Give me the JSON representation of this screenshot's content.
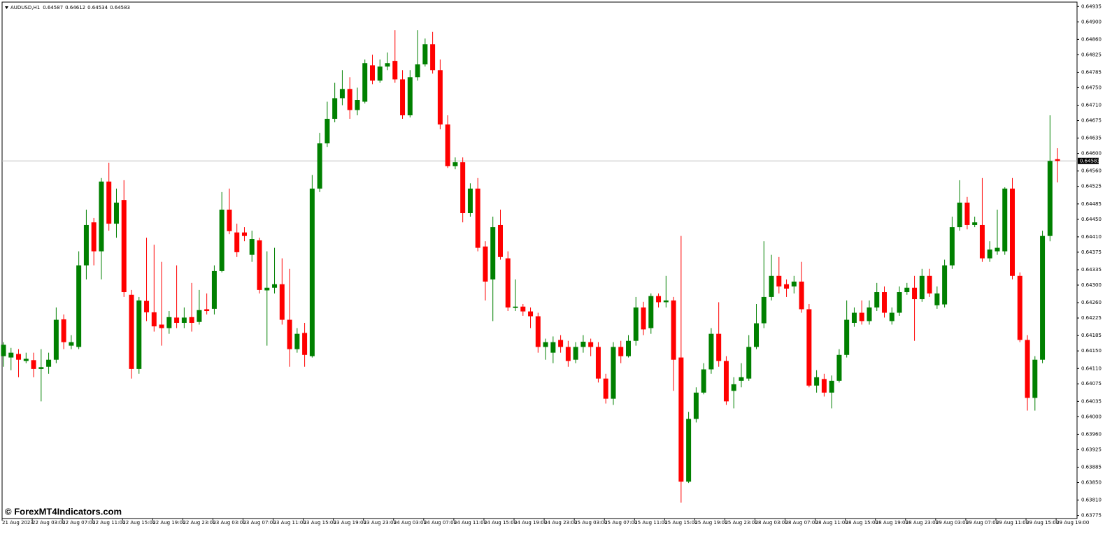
{
  "chart_data": {
    "type": "candlestick",
    "header": {
      "symbol": "AUDUSD,H1",
      "ohlc": [
        0.64587,
        0.64612,
        0.64534,
        0.64583
      ]
    },
    "watermark": "© ForexMT4Indicators.com",
    "current_price": 0.64583,
    "up_color": "#008000",
    "down_color": "#ff0000",
    "ylim": [
      0.63768,
      0.64945
    ],
    "yticks": [
      0.64935,
      {
        "value": 0.649,
        "label": "0.64900"
      },
      {
        "value": 0.6486,
        "label": "0.64860"
      },
      0.64825,
      0.64785,
      {
        "value": 0.6475,
        "label": "0.64750"
      },
      {
        "value": 0.6471,
        "label": "0.64710"
      },
      0.64675,
      0.64635,
      {
        "value": 0.646,
        "label": "0.64600"
      },
      {
        "value": 0.6456,
        "label": "0.64560"
      },
      0.64525,
      0.64485,
      {
        "value": 0.6445,
        "label": "0.64450"
      },
      {
        "value": 0.6441,
        "label": "0.64410"
      },
      0.64375,
      0.64335,
      {
        "value": 0.643,
        "label": "0.64300"
      },
      {
        "value": 0.6426,
        "label": "0.64260"
      },
      0.64225,
      0.64185,
      {
        "value": 0.6415,
        "label": "0.64150"
      },
      {
        "value": 0.6411,
        "label": "0.64110"
      },
      0.64075,
      0.64035,
      {
        "value": 0.64,
        "label": "0.64000"
      },
      {
        "value": 0.6396,
        "label": "0.63960"
      },
      0.63925,
      0.63885,
      {
        "value": 0.6385,
        "label": "0.63850"
      },
      {
        "value": 0.6381,
        "label": "0.63810"
      },
      0.63775
    ],
    "x_tick_labels": [
      "21 Aug 2023",
      "22 Aug 03:00",
      "22 Aug 07:00",
      "22 Aug 11:00",
      "22 Aug 15:00",
      "22 Aug 19:00",
      "22 Aug 23:00",
      "23 Aug 03:00",
      "23 Aug 07:00",
      "23 Aug 11:00",
      "23 Aug 15:00",
      "23 Aug 19:00",
      "23 Aug 23:00",
      "24 Aug 03:00",
      "24 Aug 07:00",
      "24 Aug 11:00",
      "24 Aug 15:00",
      "24 Aug 19:00",
      "24 Aug 23:00",
      "25 Aug 03:00",
      "25 Aug 07:00",
      "25 Aug 11:00",
      "25 Aug 15:00",
      "25 Aug 19:00",
      "25 Aug 23:00",
      "28 Aug 03:00",
      "28 Aug 07:00",
      "28 Aug 11:00",
      "28 Aug 15:00",
      "28 Aug 19:00",
      "28 Aug 23:00",
      "29 Aug 03:00",
      "29 Aug 07:00",
      "29 Aug 11:00",
      "29 Aug 15:00",
      "29 Aug 19:00"
    ],
    "open": [
      0.64138,
      0.64135,
      0.64143,
      0.64127,
      0.64129,
      0.64109,
      0.64114,
      0.6413,
      0.64222,
      0.64162,
      0.64159,
      0.64345,
      0.64443,
      0.64377,
      0.64536,
      0.6444,
      0.64494,
      0.64278,
      0.64109,
      0.64264,
      0.64238,
      0.6421,
      0.64202,
      0.64226,
      0.64214,
      0.64227,
      0.64216,
      0.64245,
      0.64246,
      0.64332,
      0.64472,
      0.6442,
      0.6442,
      0.64369,
      0.64402,
      0.64288,
      0.64294,
      0.64302,
      0.64221,
      0.64154,
      0.64191,
      0.64138,
      0.6452,
      0.64623,
      0.64679,
      0.64726,
      0.64747,
      0.64699,
      0.64718,
      0.64801,
      0.64766,
      0.64798,
      0.64811,
      0.64769,
      0.64687,
      0.64774,
      0.64803,
      0.64849,
      0.6479,
      0.64666,
      0.64571,
      0.6458,
      0.64464,
      0.6452,
      0.64388,
      0.64313,
      0.64437,
      0.64361,
      0.64248,
      0.64251,
      0.6424,
      0.64229,
      0.64159,
      0.64146,
      0.64175,
      0.64159,
      0.6413,
      0.64159,
      0.6417,
      0.64159,
      0.64087,
      0.64041,
      0.64159,
      0.64138,
      0.64173,
      0.64249,
      0.64202,
      0.64275,
      0.64261,
      0.64265,
      0.64135,
      0.63852,
      0.63995,
      0.64055,
      0.64108,
      0.64189,
      0.64127,
      0.64059,
      0.64082,
      0.64087,
      0.64159,
      0.64213,
      0.64273,
      0.64321,
      0.64302,
      0.64297,
      0.64308,
      0.64245,
      0.64071,
      0.64086,
      0.64055,
      0.64082,
      0.64141,
      0.64214,
      0.64237,
      0.64218,
      0.64249,
      0.64284,
      0.64218,
      0.64237,
      0.64284,
      0.64294,
      0.64268,
      0.64321,
      0.64254,
      0.64256,
      0.64345,
      0.64432,
      0.64488,
      0.64437,
      0.64437,
      0.64361,
      0.64377,
      0.64377,
      0.6452,
      0.64321,
      0.64175,
      0.64043,
      0.6413,
      0.64412,
      0.64587
    ],
    "high": [
      0.6417,
      0.64157,
      0.64154,
      0.64146,
      0.64146,
      0.64154,
      0.64146,
      0.64249,
      0.64233,
      0.64186,
      0.64377,
      0.64472,
      0.64453,
      0.64544,
      0.64579,
      0.6452,
      0.64539,
      0.64289,
      0.64273,
      0.64408,
      0.64392,
      0.64353,
      0.64241,
      0.64345,
      0.64249,
      0.64305,
      0.64289,
      0.64281,
      0.64345,
      0.64512,
      0.6452,
      0.6444,
      0.64432,
      0.64424,
      0.64408,
      0.64377,
      0.64385,
      0.64361,
      0.64337,
      0.64202,
      0.64214,
      0.64551,
      0.64647,
      0.64718,
      0.64761,
      0.6479,
      0.64774,
      0.6475,
      0.64814,
      0.64825,
      0.64814,
      0.6483,
      0.64881,
      0.6479,
      0.6479,
      0.64881,
      0.64862,
      0.64877,
      0.64814,
      0.64687,
      0.64591,
      0.64591,
      0.64532,
      0.64544,
      0.644,
      0.64456,
      0.64472,
      0.64377,
      0.64313,
      0.64257,
      0.64249,
      0.64237,
      0.64178,
      0.64183,
      0.64186,
      0.64173,
      0.6417,
      0.64186,
      0.64178,
      0.6417,
      0.64098,
      0.6417,
      0.64173,
      0.64186,
      0.64273,
      0.64262,
      0.64281,
      0.64281,
      0.64321,
      0.64273,
      0.64412,
      0.64011,
      0.64067,
      0.64122,
      0.64202,
      0.64261,
      0.64138,
      0.6409,
      0.64122,
      0.64186,
      0.64257,
      0.644,
      0.64369,
      0.64364,
      0.64313,
      0.64321,
      0.64353,
      0.64257,
      0.64106,
      0.64098,
      0.64094,
      0.64154,
      0.64265,
      0.64249,
      0.64265,
      0.64265,
      0.64305,
      0.64297,
      0.64249,
      0.64297,
      0.64305,
      0.64321,
      0.64337,
      0.64337,
      0.64297,
      0.64358,
      0.64456,
      0.64539,
      0.64501,
      0.64456,
      0.64544,
      0.644,
      0.64472,
      0.64523,
      0.64544,
      0.64329,
      0.64186,
      0.64138,
      0.64424,
      0.64687,
      0.64612
    ],
    "low": [
      0.64114,
      0.64106,
      0.6409,
      0.64122,
      0.6409,
      0.64035,
      0.64098,
      0.64122,
      0.64154,
      0.64154,
      0.64154,
      0.64313,
      0.64345,
      0.64313,
      0.64424,
      0.64408,
      0.64273,
      0.64087,
      0.64098,
      0.64218,
      0.64194,
      0.64162,
      0.64189,
      0.64202,
      0.64202,
      0.64194,
      0.6421,
      0.64233,
      0.64233,
      0.64329,
      0.64416,
      0.64364,
      0.644,
      0.64353,
      0.64281,
      0.64162,
      0.64281,
      0.6421,
      0.64114,
      0.64146,
      0.64114,
      0.64135,
      0.64512,
      0.64615,
      0.64671,
      0.6471,
      0.64679,
      0.64687,
      0.64714,
      0.64758,
      0.64761,
      0.6479,
      0.64761,
      0.64679,
      0.64682,
      0.64766,
      0.64798,
      0.64782,
      0.64655,
      0.64567,
      0.64564,
      0.64443,
      0.64456,
      0.64377,
      0.64265,
      0.64218,
      0.64358,
      0.64241,
      0.64241,
      0.6423,
      0.64202,
      0.64146,
      0.6413,
      0.64122,
      0.64146,
      0.64114,
      0.64122,
      0.64146,
      0.64138,
      0.64078,
      0.6403,
      0.64027,
      0.64122,
      0.64135,
      0.64162,
      0.64186,
      0.64189,
      0.64249,
      0.64249,
      0.64059,
      0.63804,
      0.63849,
      0.63987,
      0.64051,
      0.64098,
      0.64114,
      0.64027,
      0.64019,
      0.64067,
      0.64082,
      0.64154,
      0.64202,
      0.64265,
      0.64281,
      0.64273,
      0.64281,
      0.64237,
      0.64067,
      0.64055,
      0.64046,
      0.64019,
      0.64078,
      0.64135,
      0.64205,
      0.6421,
      0.6421,
      0.64241,
      0.64226,
      0.6421,
      0.6423,
      0.64278,
      0.64173,
      0.64262,
      0.64273,
      0.64246,
      0.64249,
      0.64337,
      0.64424,
      0.64427,
      0.64432,
      0.64353,
      0.64353,
      0.64369,
      0.64369,
      0.64313,
      0.6417,
      0.64014,
      0.64014,
      0.64122,
      0.644,
      0.64534
    ],
    "close": [
      0.64164,
      0.64146,
      0.6413,
      0.64132,
      0.64109,
      0.64113,
      0.6413,
      0.64221,
      0.6417,
      0.6417,
      0.64345,
      0.64437,
      0.64377,
      0.64536,
      0.6444,
      0.64488,
      0.64284,
      0.64109,
      0.64265,
      0.64238,
      0.64206,
      0.64202,
      0.64227,
      0.64214,
      0.64226,
      0.64214,
      0.64243,
      0.64241,
      0.64332,
      0.64472,
      0.64423,
      0.64375,
      0.64412,
      0.64405,
      0.64289,
      0.64294,
      0.64302,
      0.64221,
      0.64154,
      0.64189,
      0.64141,
      0.6452,
      0.64623,
      0.64679,
      0.64726,
      0.64747,
      0.64699,
      0.64722,
      0.64806,
      0.64766,
      0.64798,
      0.64806,
      0.64769,
      0.64687,
      0.64774,
      0.64803,
      0.64849,
      0.6479,
      0.64666,
      0.64571,
      0.6458,
      0.64464,
      0.6452,
      0.64385,
      0.64308,
      0.64432,
      0.64364,
      0.64249,
      0.64251,
      0.6424,
      0.64229,
      0.64159,
      0.6417,
      0.6417,
      0.64159,
      0.64127,
      0.64159,
      0.64171,
      0.64159,
      0.64087,
      0.64041,
      0.64159,
      0.64138,
      0.64173,
      0.64249,
      0.64199,
      0.64275,
      0.64261,
      0.64265,
      0.6413,
      0.63852,
      0.63995,
      0.64055,
      0.64108,
      0.64189,
      0.64127,
      0.64035,
      0.64074,
      0.6409,
      0.64159,
      0.64213,
      0.64273,
      0.64321,
      0.64297,
      0.64292,
      0.64308,
      0.64245,
      0.64071,
      0.6409,
      0.64055,
      0.64082,
      0.64141,
      0.64221,
      0.64237,
      0.64218,
      0.64249,
      0.64284,
      0.64237,
      0.64237,
      0.64284,
      0.64294,
      0.64268,
      0.64321,
      0.64281,
      0.64281,
      0.64345,
      0.64432,
      0.64488,
      0.64437,
      0.64443,
      0.64361,
      0.64381,
      0.64385,
      0.6452,
      0.64321,
      0.64175,
      0.64043,
      0.6413,
      0.64412,
      0.64583,
      0.64583
    ]
  }
}
